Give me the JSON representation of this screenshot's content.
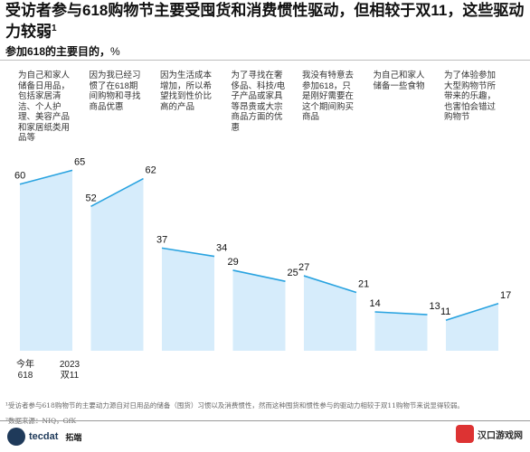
{
  "title": "受访者参与618购物节主要受囤货和消费惯性驱动，但相较于双11，这些驱动力较弱",
  "title_note": "1",
  "subtitle": "参加618的主要目的，",
  "subtitle_unit": "%",
  "x_labels": [
    {
      "line1": "今年",
      "line2": "618"
    },
    {
      "line1": "2023",
      "line2": "双11"
    }
  ],
  "footnotes": [
    "¹受访者参与618购物节的主要动力源自对日用品的储备（囤货）习惯以及消费惯性，然而这种囤货和惯性参与的驱动力相较于双11购物节来说显得较弱。",
    "²数据来源：NIQ，GfK"
  ],
  "brand": {
    "logo_text": "tecdat",
    "name": "拓端"
  },
  "watermark": {
    "text": "汉口游戏网"
  },
  "colors": {
    "fill": "#d6ecfb",
    "line": "#29a3e0",
    "text": "#111111"
  },
  "chart_data": {
    "type": "area",
    "x": [
      "今年618",
      "2023双11"
    ],
    "ylim": [
      0,
      70
    ],
    "grid": false,
    "categories": [
      "为自己和家人储备日用品，包括家居清洁、个人护理、美容产品和家居纸类用品等",
      "因为我已经习惯了在618期间购物和寻找商品优惠",
      "因为生活成本增加，所以希望找到性价比高的产品",
      "为了寻找在奢侈品、科技/电子产品或家具等昂贵或大宗商品方面的优惠",
      "我没有特意去参加618，只是刚好需要在这个期间购买商品",
      "为自己和家人储备一些食物",
      "为了体验参加大型购物节所带来的乐趣，也害怕会错过购物节"
    ],
    "series": [
      {
        "values": [
          60,
          65
        ]
      },
      {
        "values": [
          52,
          62
        ]
      },
      {
        "values": [
          37,
          34
        ]
      },
      {
        "values": [
          29,
          25
        ]
      },
      {
        "values": [
          27,
          21
        ]
      },
      {
        "values": [
          14,
          13
        ]
      },
      {
        "values": [
          11,
          17
        ]
      }
    ]
  }
}
